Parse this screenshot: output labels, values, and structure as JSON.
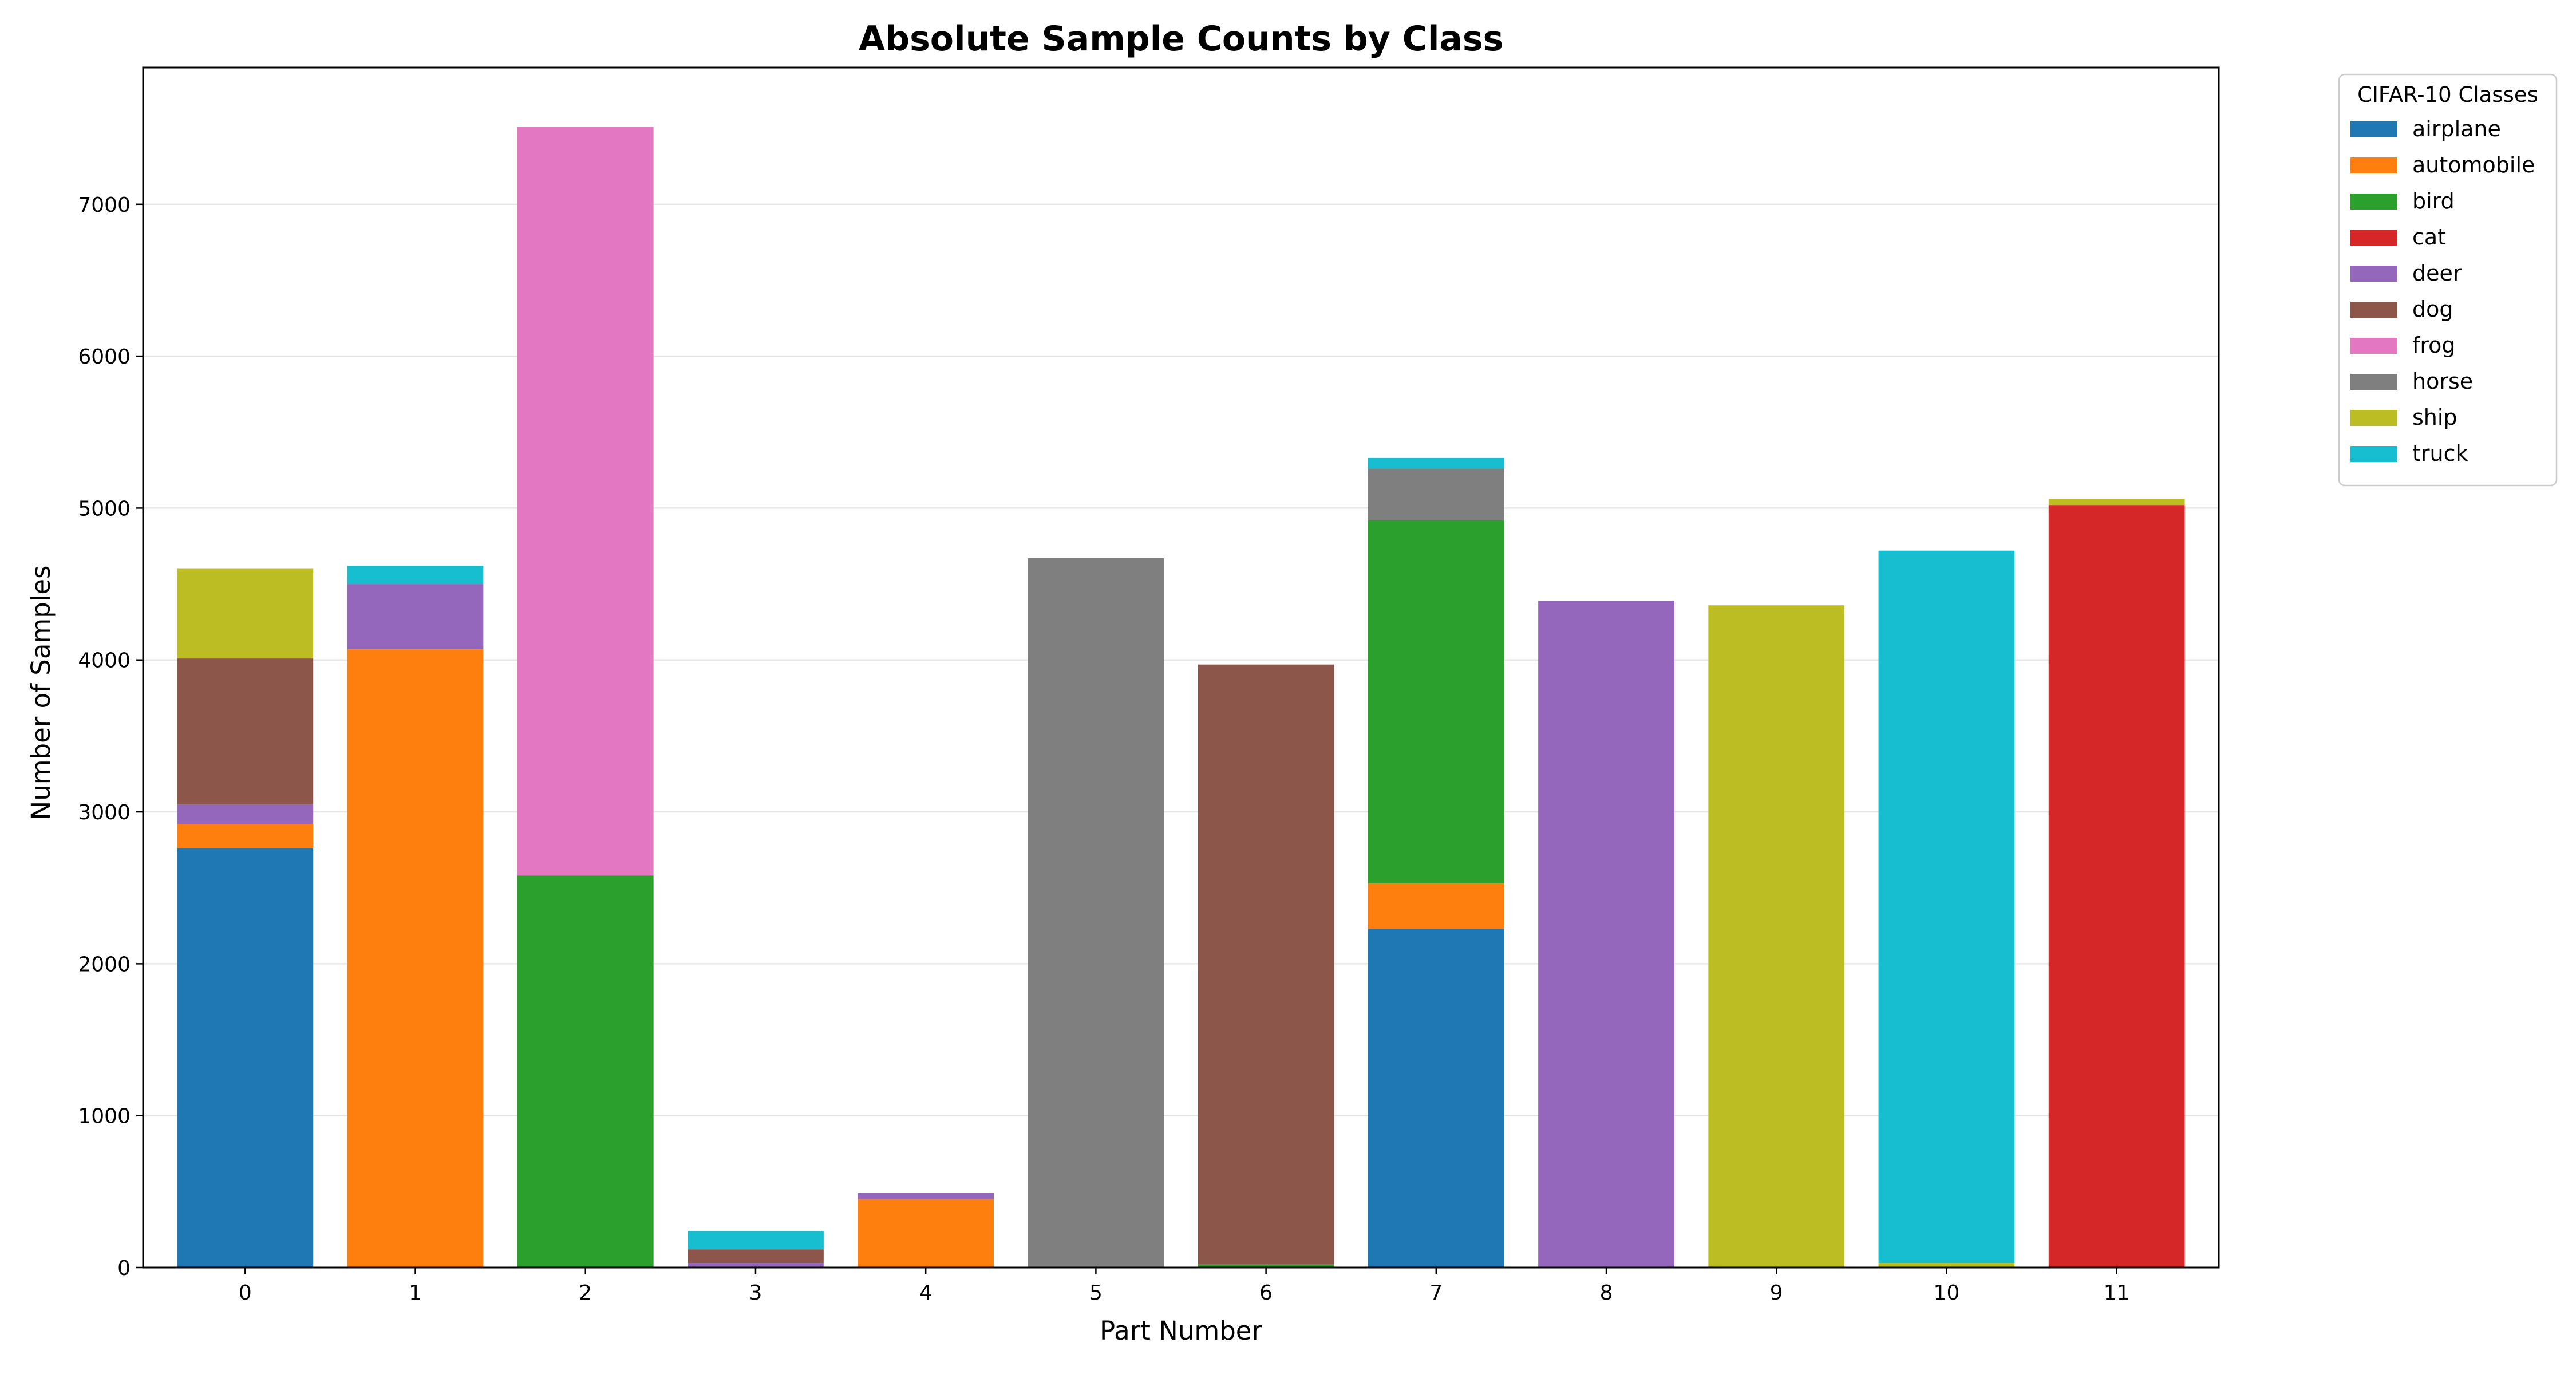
{
  "chart_data": {
    "type": "bar",
    "stacked": true,
    "title": "Absolute Sample Counts by Class",
    "xlabel": "Part Number",
    "ylabel": "Number of Samples",
    "ylim": [
      0,
      7900
    ],
    "yticks": [
      0,
      1000,
      2000,
      3000,
      4000,
      5000,
      6000,
      7000
    ],
    "grid": "horizontal",
    "legend": {
      "title": "CIFAR-10 Classes",
      "placement": "outside-top-right"
    },
    "categories": [
      "0",
      "1",
      "2",
      "3",
      "4",
      "5",
      "6",
      "7",
      "8",
      "9",
      "10",
      "11"
    ],
    "series": [
      {
        "name": "airplane",
        "color": "#1f77b4",
        "values": [
          2760,
          0,
          0,
          0,
          0,
          0,
          0,
          2230,
          0,
          0,
          0,
          0
        ]
      },
      {
        "name": "automobile",
        "color": "#ff7f0e",
        "values": [
          160,
          4070,
          0,
          0,
          450,
          0,
          0,
          300,
          0,
          0,
          0,
          0
        ]
      },
      {
        "name": "bird",
        "color": "#2ca02c",
        "values": [
          0,
          0,
          2580,
          0,
          0,
          0,
          20,
          2390,
          0,
          0,
          0,
          0
        ]
      },
      {
        "name": "cat",
        "color": "#d62728",
        "values": [
          0,
          0,
          0,
          0,
          0,
          0,
          0,
          0,
          0,
          0,
          0,
          5020
        ]
      },
      {
        "name": "deer",
        "color": "#9467bd",
        "values": [
          130,
          430,
          0,
          30,
          40,
          0,
          0,
          0,
          4390,
          0,
          0,
          0
        ]
      },
      {
        "name": "dog",
        "color": "#8c564b",
        "values": [
          960,
          0,
          0,
          90,
          0,
          0,
          3950,
          0,
          0,
          0,
          0,
          0
        ]
      },
      {
        "name": "frog",
        "color": "#e377c2",
        "values": [
          0,
          0,
          4930,
          0,
          0,
          0,
          0,
          0,
          0,
          0,
          0,
          0
        ]
      },
      {
        "name": "horse",
        "color": "#7f7f7f",
        "values": [
          0,
          0,
          0,
          0,
          0,
          4670,
          0,
          340,
          0,
          0,
          0,
          0
        ]
      },
      {
        "name": "ship",
        "color": "#bcbd22",
        "values": [
          590,
          0,
          0,
          0,
          0,
          0,
          0,
          0,
          0,
          4360,
          30,
          40
        ]
      },
      {
        "name": "truck",
        "color": "#17becf",
        "values": [
          0,
          120,
          0,
          120,
          0,
          0,
          0,
          70,
          0,
          0,
          4690,
          0
        ]
      }
    ]
  }
}
